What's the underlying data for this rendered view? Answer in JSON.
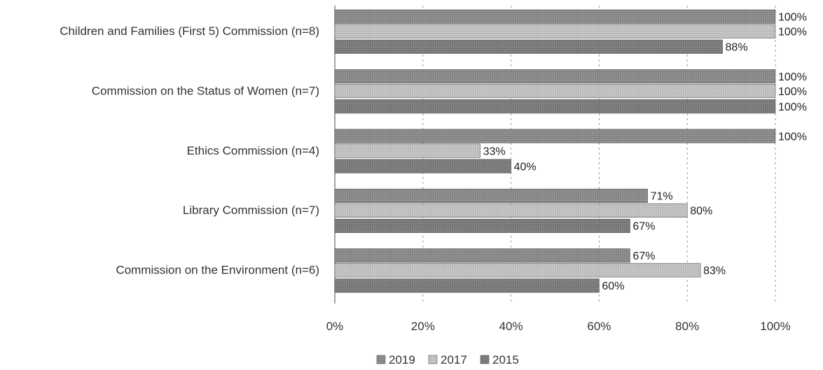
{
  "chart_data": {
    "type": "bar",
    "orientation": "horizontal",
    "categories": [
      "Children and Families (First 5) Commission (n=8)",
      "Commission on the Status of Women (n=7)",
      "Ethics Commission (n=4)",
      "Library Commission (n=7)",
      "Commission on the Environment (n=6)"
    ],
    "series": [
      {
        "name": "2019",
        "values": [
          100,
          100,
          100,
          71,
          67
        ],
        "labels": [
          "100%",
          "100%",
          "100%",
          "71%",
          "67%"
        ],
        "color": "#8c8c8c"
      },
      {
        "name": "2017",
        "values": [
          100,
          100,
          33,
          80,
          83
        ],
        "labels": [
          "100%",
          "100%",
          "33%",
          "80%",
          "83%"
        ],
        "color": "#bdbdbd"
      },
      {
        "name": "2015",
        "values": [
          88,
          100,
          40,
          67,
          60
        ],
        "labels": [
          "88%",
          "100%",
          "40%",
          "67%",
          "60%"
        ],
        "color": "#7a7a7a"
      }
    ],
    "xlim": [
      0,
      100
    ],
    "xticks": [
      "0%",
      "20%",
      "40%",
      "60%",
      "80%",
      "100%"
    ],
    "grid": true,
    "legend_position": "bottom"
  }
}
